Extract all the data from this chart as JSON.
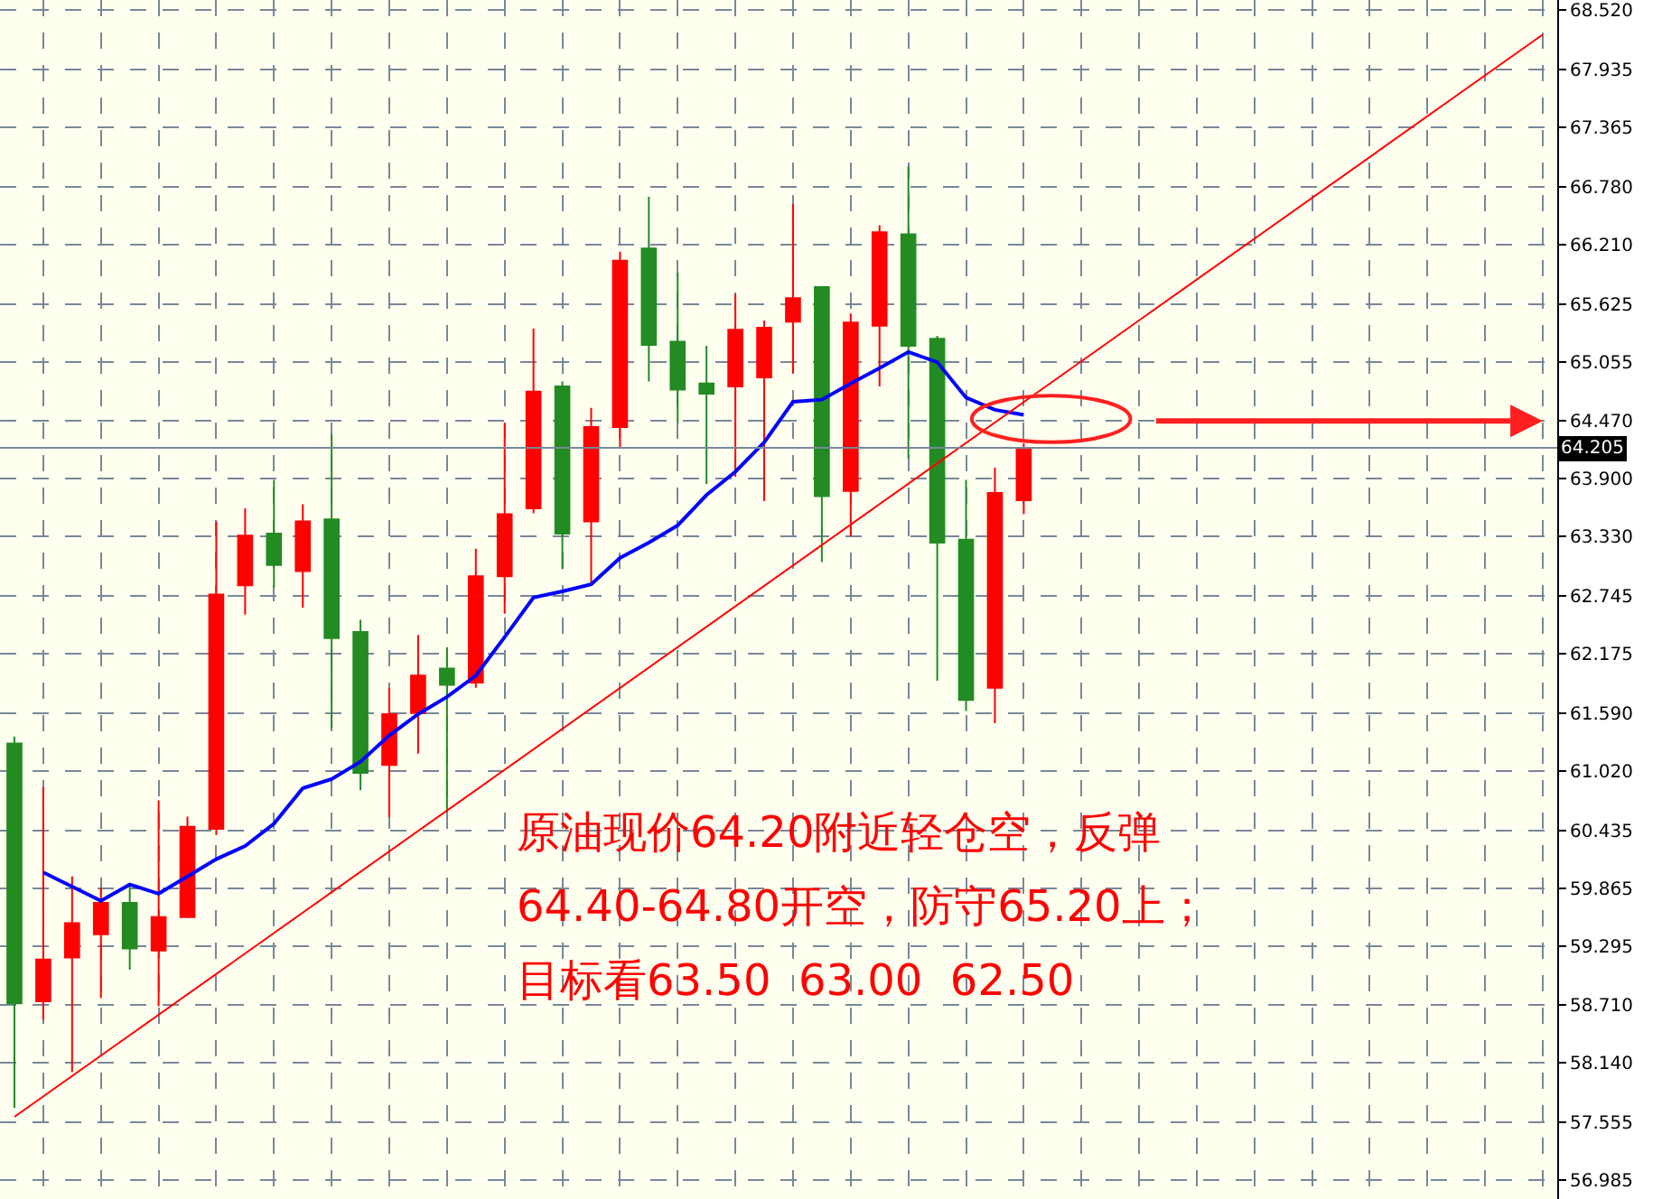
{
  "chart_data": {
    "type": "candlestick",
    "categories": [
      null,
      null,
      null,
      null,
      null,
      null,
      null,
      null,
      null,
      null,
      null,
      null,
      null,
      null,
      null,
      null,
      null,
      null,
      null,
      null,
      null,
      null,
      null,
      null,
      null,
      null,
      null,
      null,
      null,
      null,
      null,
      null,
      null,
      null,
      null,
      null,
      null,
      null,
      null,
      null,
      null,
      null,
      null,
      null,
      null,
      null,
      null,
      null,
      null,
      null,
      null,
      null,
      null,
      null
    ],
    "ohlc": [
      [
        61.29,
        61.36,
        57.7,
        58.73
      ],
      [
        58.75,
        60.86,
        58.57,
        59.16
      ],
      [
        59.18,
        59.98,
        58.05,
        59.52
      ],
      [
        59.41,
        59.87,
        58.78,
        59.72
      ],
      [
        59.72,
        59.88,
        59.06,
        59.27
      ],
      [
        59.25,
        60.73,
        58.7,
        59.58
      ],
      [
        59.58,
        60.57,
        59.58,
        60.47
      ],
      [
        60.45,
        63.48,
        60.39,
        62.76
      ],
      [
        62.85,
        63.61,
        62.56,
        63.34
      ],
      [
        63.36,
        63.89,
        62.83,
        63.05
      ],
      [
        62.99,
        63.65,
        62.63,
        63.48
      ],
      [
        63.5,
        64.34,
        61.44,
        62.33
      ],
      [
        62.39,
        62.51,
        60.83,
        61.0
      ],
      [
        61.08,
        61.84,
        60.56,
        61.58
      ],
      [
        61.59,
        62.36,
        61.19,
        61.96
      ],
      [
        62.03,
        62.24,
        60.61,
        61.87
      ],
      [
        61.89,
        63.21,
        61.84,
        62.94
      ],
      [
        62.94,
        64.45,
        62.57,
        63.55
      ],
      [
        63.61,
        65.38,
        63.56,
        64.76
      ],
      [
        64.81,
        64.86,
        63.01,
        63.36
      ],
      [
        63.48,
        64.6,
        62.86,
        64.41
      ],
      [
        64.41,
        66.14,
        64.21,
        66.05
      ],
      [
        66.17,
        66.68,
        64.86,
        65.22
      ],
      [
        65.25,
        65.93,
        64.45,
        64.78
      ],
      [
        64.84,
        65.21,
        63.85,
        64.74
      ],
      [
        64.81,
        65.72,
        63.92,
        65.37
      ],
      [
        64.9,
        65.46,
        63.68,
        65.39
      ],
      [
        65.45,
        66.61,
        64.94,
        65.68
      ],
      [
        65.79,
        65.79,
        63.08,
        63.73
      ],
      [
        63.78,
        65.53,
        63.33,
        65.44
      ],
      [
        65.41,
        66.4,
        64.81,
        66.33
      ],
      [
        66.31,
        66.98,
        64.1,
        65.21
      ],
      [
        65.28,
        65.31,
        61.91,
        63.27
      ],
      [
        63.3,
        63.89,
        61.61,
        61.72
      ],
      [
        61.84,
        64.01,
        61.49,
        63.76
      ],
      [
        63.69,
        64.25,
        63.55,
        64.2
      ],
      null,
      null,
      null,
      null,
      null,
      null,
      null,
      null,
      null,
      null,
      null,
      null,
      null,
      null,
      null,
      null,
      null,
      null
    ],
    "colors": [
      "#228b22",
      "#ff0000",
      "#ff0000",
      "#ff0000",
      "#228b22",
      "#ff0000",
      "#ff0000",
      "#ff0000",
      "#ff0000",
      "#228b22",
      "#ff0000",
      "#228b22",
      "#228b22",
      "#ff0000",
      "#ff0000",
      "#228b22",
      "#ff0000",
      "#ff0000",
      "#ff0000",
      "#228b22",
      "#ff0000",
      "#ff0000",
      "#228b22",
      "#228b22",
      "#228b22",
      "#ff0000",
      "#ff0000",
      "#ff0000",
      "#228b22",
      "#ff0000",
      "#ff0000",
      "#228b22",
      "#228b22",
      "#228b22",
      "#ff0000",
      "#ff0000",
      null,
      null,
      null,
      null,
      null,
      null,
      null,
      null,
      null,
      null,
      null,
      null,
      null,
      null,
      null,
      null,
      null,
      null
    ],
    "series": [
      {
        "type": "line",
        "color": "#0000ff",
        "values": [
          null,
          60.02,
          59.88,
          59.74,
          59.9,
          59.81,
          59.98,
          60.15,
          60.28,
          60.5,
          60.85,
          60.94,
          61.11,
          61.37,
          61.58,
          61.75,
          61.96,
          62.34,
          62.73,
          62.79,
          62.86,
          63.12,
          63.27,
          63.44,
          63.74,
          63.97,
          64.26,
          64.66,
          64.68,
          64.84,
          64.99,
          65.15,
          65.05,
          64.7,
          64.58,
          64.53,
          null,
          null,
          null,
          null,
          null,
          null,
          null,
          null,
          null,
          null,
          null,
          null,
          null,
          null,
          null,
          null,
          null,
          null
        ]
      },
      {
        "type": "line",
        "color": "#ff0000",
        "values": [
          57.61,
          null,
          null,
          null,
          null,
          null,
          null,
          null,
          null,
          null,
          null,
          null,
          null,
          null,
          null,
          null,
          null,
          null,
          null,
          null,
          null,
          null,
          null,
          null,
          null,
          null,
          null,
          null,
          null,
          null,
          null,
          null,
          null,
          null,
          null,
          null,
          null,
          null,
          null,
          null,
          null,
          null,
          null,
          null,
          null,
          null,
          null,
          null,
          null,
          null,
          null,
          null,
          null,
          68.28
        ]
      }
    ],
    "ylim": [
      56.8,
      68.62
    ],
    "yticks": [
      {
        "value": 68.52,
        "label": "68.520"
      },
      {
        "value": 67.935,
        "label": "67.935"
      },
      {
        "value": 67.365,
        "label": "67.365"
      },
      {
        "value": 66.78,
        "label": "66.780"
      },
      {
        "value": 66.21,
        "label": "66.210"
      },
      {
        "value": 65.625,
        "label": "65.625"
      },
      {
        "value": 65.055,
        "label": "65.055"
      },
      {
        "value": 64.47,
        "label": "64.470"
      },
      {
        "value": 63.9,
        "label": "63.900"
      },
      {
        "value": 63.33,
        "label": "63.330"
      },
      {
        "value": 62.745,
        "label": "62.745"
      },
      {
        "value": 62.175,
        "label": "62.175"
      },
      {
        "value": 61.59,
        "label": "61.590"
      },
      {
        "value": 61.02,
        "label": "61.020"
      },
      {
        "value": 60.435,
        "label": "60.435"
      },
      {
        "value": 59.865,
        "label": "59.865"
      },
      {
        "value": 59.295,
        "label": "59.295"
      },
      {
        "value": 58.71,
        "label": "58.710"
      },
      {
        "value": 58.14,
        "label": "58.140"
      },
      {
        "value": 57.555,
        "label": "57.555"
      },
      {
        "value": 56.985,
        "label": "56.985"
      }
    ],
    "tick_labels": "y",
    "grid": true,
    "ref_lines": [
      {
        "axis": "y",
        "value": 64.205,
        "label": "64.205",
        "color": "#778899"
      }
    ],
    "annotations": [
      "原油现价64.20附近轻仓空，反弹",
      "64.40-64.80开空，防守65.20上；",
      "目标看63.50  63.00  62.50"
    ]
  }
}
